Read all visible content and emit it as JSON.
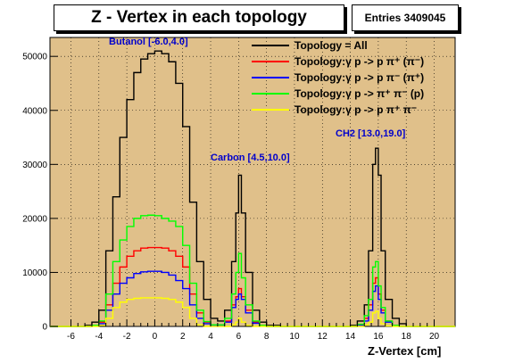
{
  "chart_data": {
    "type": "line",
    "title": "Z - Vertex in each topology",
    "entries_label": "Entries 3409045",
    "xlabel": "Z-Vertex [cm]",
    "ylabel": "",
    "xlim": [
      -7.5,
      21.5
    ],
    "ylim": [
      0,
      53500
    ],
    "x_ticks": [
      -6,
      -4,
      -2,
      0,
      2,
      4,
      6,
      8,
      10,
      12,
      14,
      16,
      18,
      20
    ],
    "y_ticks": [
      0,
      10000,
      20000,
      30000,
      40000,
      50000
    ],
    "x_tick_labels": [
      "-6",
      "-4",
      "-2",
      "0",
      "2",
      "4",
      "6",
      "8",
      "10",
      "12",
      "14",
      "16",
      "18",
      "20"
    ],
    "y_tick_labels": [
      "0",
      "10000",
      "20000",
      "30000",
      "40000",
      "50000"
    ],
    "background_color": "#e0c08a",
    "grid": true,
    "legend_position": "top-right",
    "annotations": [
      {
        "text": "Butanol [-6.0,4.0]",
        "x": -1.8,
        "y": 51500
      },
      {
        "text": "Carbon [4.5,10.0]",
        "x": 6.0,
        "y": 31000
      },
      {
        "text": "CH2 [13.0,19.0]",
        "x": 16.0,
        "y": 35000
      }
    ],
    "x": [
      -7.5,
      -6,
      -5,
      -4.5,
      -4,
      -3.5,
      -3,
      -2.5,
      -2,
      -1.5,
      -1,
      -0.5,
      0,
      0.5,
      1,
      1.5,
      2,
      2.5,
      3,
      3.5,
      4,
      4.5,
      5,
      5.5,
      5.8,
      6,
      6.2,
      6.5,
      7,
      7.5,
      8,
      9,
      10,
      12,
      13,
      14,
      14.5,
      15,
      15.3,
      15.6,
      15.8,
      16,
      16.2,
      16.5,
      17,
      17.5,
      18,
      19,
      20,
      21.5
    ],
    "series": [
      {
        "name": "Topology = All",
        "color": "#000000",
        "values": [
          0,
          0,
          200,
          800,
          3000,
          14000,
          24000,
          35000,
          42000,
          47000,
          49500,
          50500,
          51000,
          50500,
          49000,
          45000,
          37000,
          23000,
          12000,
          5000,
          1500,
          1000,
          3000,
          12000,
          21000,
          28000,
          21000,
          10000,
          3000,
          800,
          200,
          0,
          0,
          0,
          0,
          200,
          1000,
          4000,
          14000,
          30000,
          33000,
          28000,
          14000,
          5000,
          1500,
          500,
          0,
          0,
          0,
          0
        ]
      },
      {
        "name": "Topology:γ p -> p π⁺ (π⁻)",
        "color": "#ff0000",
        "values": [
          0,
          0,
          0,
          100,
          800,
          4000,
          8000,
          11000,
          13000,
          14000,
          14500,
          14600,
          14600,
          14500,
          14000,
          13000,
          11000,
          6000,
          2500,
          800,
          300,
          200,
          1000,
          4000,
          5500,
          7000,
          5500,
          3000,
          800,
          200,
          0,
          0,
          0,
          0,
          0,
          0,
          300,
          1500,
          4000,
          8000,
          9000,
          6000,
          3000,
          1000,
          200,
          0,
          0,
          0,
          0,
          0
        ]
      },
      {
        "name": "Topology:γ p -> p π⁻ (π⁺)",
        "color": "#0000ff",
        "values": [
          0,
          0,
          0,
          100,
          500,
          3000,
          6000,
          8000,
          9000,
          9800,
          10100,
          10200,
          10200,
          10000,
          9500,
          8500,
          7000,
          4000,
          1500,
          500,
          200,
          200,
          800,
          3500,
          5000,
          6000,
          5000,
          2500,
          600,
          100,
          0,
          0,
          0,
          0,
          0,
          0,
          200,
          1000,
          3000,
          6500,
          7500,
          5000,
          2500,
          800,
          100,
          0,
          0,
          0,
          0,
          0
        ]
      },
      {
        "name": "Topology:γ p -> π⁺ π⁻ (p)",
        "color": "#00ff00",
        "values": [
          0,
          0,
          0,
          200,
          1000,
          6000,
          12000,
          16000,
          18500,
          20000,
          20500,
          20600,
          20500,
          20000,
          19500,
          18500,
          15000,
          8000,
          3000,
          900,
          300,
          300,
          1500,
          6000,
          10000,
          13500,
          9000,
          4000,
          1000,
          200,
          0,
          0,
          0,
          0,
          0,
          0,
          400,
          2000,
          5000,
          11000,
          12000,
          7500,
          3500,
          1000,
          200,
          0,
          0,
          0,
          0,
          0
        ]
      },
      {
        "name": "Topology:γ p -> p π⁺ π⁻",
        "color": "#ffff00",
        "values": [
          0,
          0,
          0,
          0,
          200,
          1500,
          3500,
          4500,
          5000,
          5200,
          5300,
          5300,
          5300,
          5200,
          5000,
          4500,
          3500,
          1500,
          300,
          0,
          0,
          0,
          0,
          300,
          800,
          1500,
          800,
          200,
          0,
          0,
          0,
          0,
          0,
          0,
          0,
          0,
          0,
          300,
          800,
          2500,
          2800,
          1500,
          500,
          100,
          0,
          0,
          0,
          0,
          0,
          0
        ]
      }
    ]
  }
}
